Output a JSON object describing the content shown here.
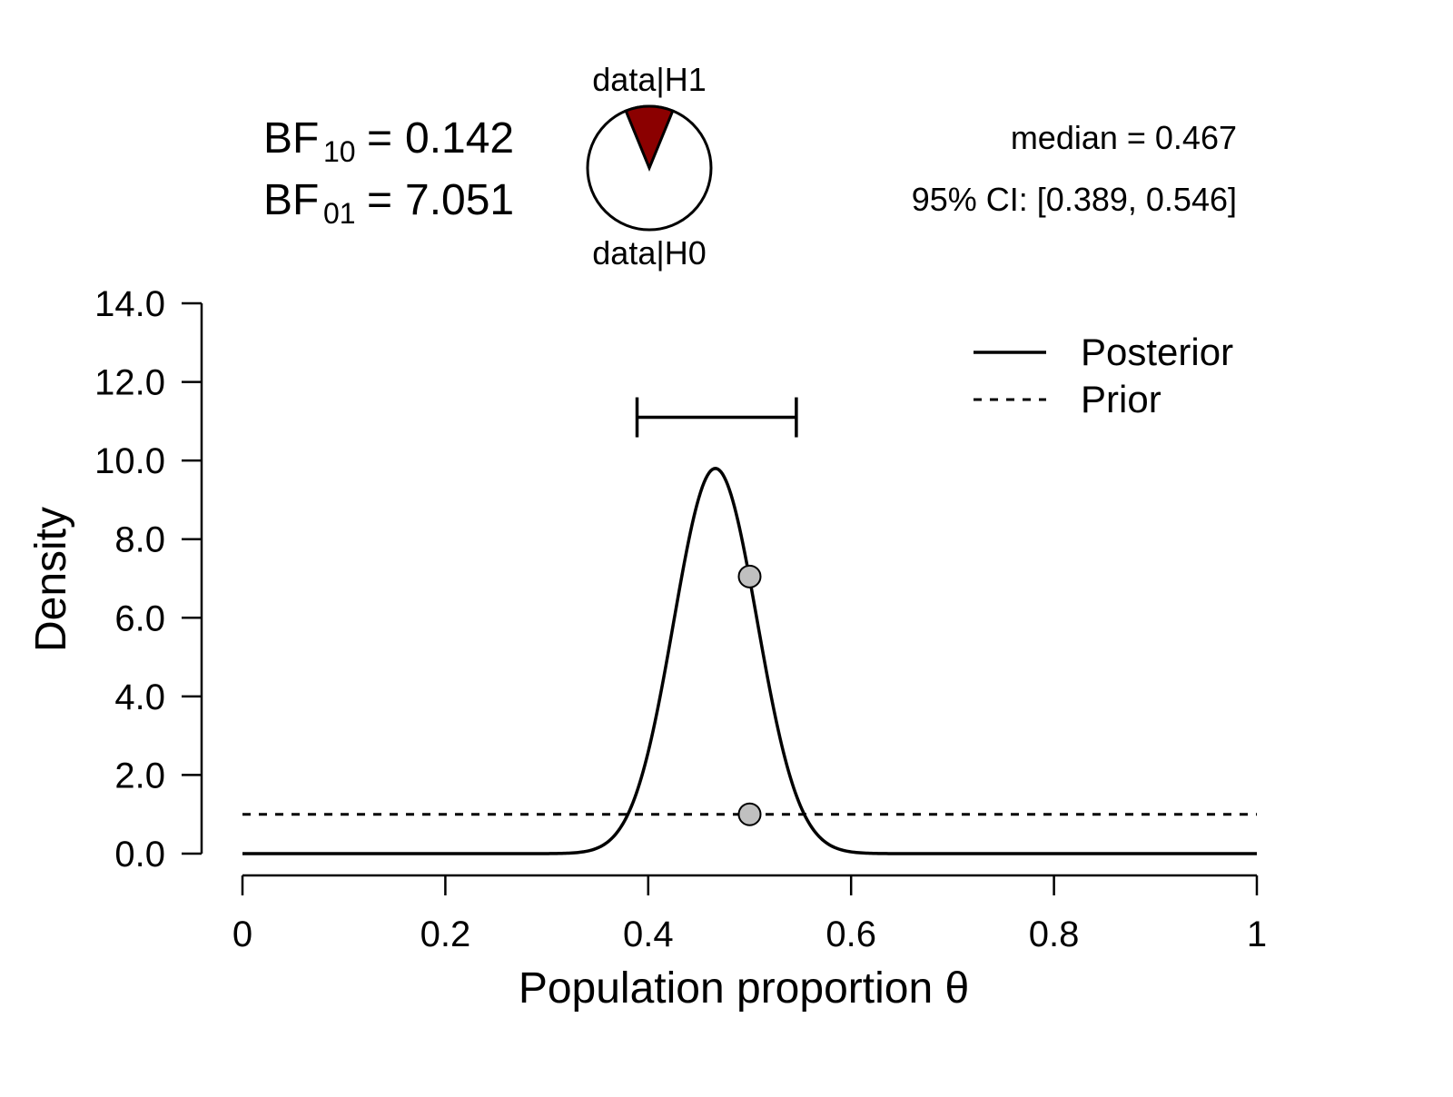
{
  "bayes_factors": {
    "bf10": {
      "base": "BF",
      "sub": "10",
      "eq": "=",
      "value": "0.142"
    },
    "bf01": {
      "base": "BF",
      "sub": "01",
      "eq": "=",
      "value": "7.051"
    }
  },
  "pie": {
    "top_label": "data|H1",
    "bottom_label": "data|H0",
    "h1_share": 0.124,
    "h1_color": "#8b0000",
    "h0_color": "#ffffff"
  },
  "summary": {
    "median_text": "median = 0.467",
    "ci_text": "95% CI: [0.389, 0.546]"
  },
  "chart_data": {
    "type": "line",
    "xlabel": "Population proportion θ",
    "ylabel": "Density",
    "xlim": [
      0,
      1
    ],
    "ylim": [
      0,
      14
    ],
    "x_ticks": [
      "0",
      "0.2",
      "0.4",
      "0.6",
      "0.8",
      "1"
    ],
    "x_tick_values": [
      0,
      0.2,
      0.4,
      0.6,
      0.8,
      1
    ],
    "y_ticks": [
      "0.0",
      "2.0",
      "4.0",
      "6.0",
      "8.0",
      "10.0",
      "12.0",
      "14.0"
    ],
    "y_tick_values": [
      0,
      2,
      4,
      6,
      8,
      10,
      12,
      14
    ],
    "legend_position": "top-right",
    "series": [
      {
        "name": "Posterior",
        "style": "solid",
        "distribution": "beta",
        "alpha": 70,
        "beta": 80,
        "peak_density": 9.8
      },
      {
        "name": "Prior",
        "style": "dashed",
        "distribution": "uniform",
        "density": 1.0
      }
    ],
    "credible_interval": {
      "lower": 0.389,
      "upper": 0.546,
      "level": 0.95,
      "y": 11.1
    },
    "points": [
      {
        "x": 0.5,
        "y": 7.05,
        "series": "Posterior"
      },
      {
        "x": 0.5,
        "y": 1.0,
        "series": "Prior"
      }
    ],
    "grid": false
  }
}
